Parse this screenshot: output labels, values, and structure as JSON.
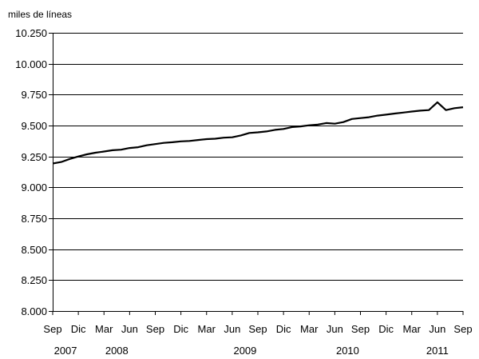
{
  "chart_data": {
    "type": "line",
    "ylabel": "miles de líneas",
    "ylim": [
      8000,
      10250
    ],
    "y_ticks": [
      8000,
      8250,
      8500,
      8750,
      9000,
      9250,
      9500,
      9750,
      10000,
      10250
    ],
    "y_tick_labels": [
      "8.000",
      "8.250",
      "8.500",
      "8.750",
      "9.000",
      "9.250",
      "9.500",
      "9.750",
      "10.000",
      "10.250"
    ],
    "categories": [
      "Sep 2007",
      "Oct 2007",
      "Nov 2007",
      "Dic 2007",
      "Ene 2008",
      "Feb 2008",
      "Mar 2008",
      "Abr 2008",
      "May 2008",
      "Jun 2008",
      "Jul 2008",
      "Ago 2008",
      "Sep 2008",
      "Oct 2008",
      "Nov 2008",
      "Dic 2008",
      "Ene 2009",
      "Feb 2009",
      "Mar 2009",
      "Abr 2009",
      "May 2009",
      "Jun 2009",
      "Jul 2009",
      "Ago 2009",
      "Sep 2009",
      "Oct 2009",
      "Nov 2009",
      "Dic 2009",
      "Ene 2010",
      "Feb 2010",
      "Mar 2010",
      "Abr 2010",
      "May 2010",
      "Jun 2010",
      "Jul 2010",
      "Ago 2010",
      "Sep 2010",
      "Oct 2010",
      "Nov 2010",
      "Dic 2010",
      "Ene 2011",
      "Feb 2011",
      "Mar 2011",
      "Abr 2011",
      "May 2011",
      "Jun 2011",
      "Jul 2011",
      "Ago 2011",
      "Sep 2011"
    ],
    "series": [
      {
        "values": [
          9193,
          9205,
          9230,
          9250,
          9267,
          9280,
          9290,
          9300,
          9305,
          9318,
          9325,
          9340,
          9350,
          9360,
          9365,
          9372,
          9375,
          9383,
          9390,
          9393,
          9402,
          9405,
          9420,
          9440,
          9445,
          9452,
          9465,
          9472,
          9488,
          9493,
          9502,
          9508,
          9520,
          9515,
          9528,
          9553,
          9560,
          9567,
          9580,
          9588,
          9597,
          9605,
          9613,
          9620,
          9625,
          9688,
          9625,
          9640,
          9648
        ]
      }
    ],
    "x_tick_labels": [
      "Sep",
      "Dic",
      "Mar",
      "Jun",
      "Sep",
      "Dic",
      "Mar",
      "Jun",
      "Sep",
      "Dic",
      "Mar",
      "Jun",
      "Sep",
      "Dic",
      "Mar",
      "Jun",
      "Sep"
    ],
    "year_labels": [
      {
        "label": "2007",
        "at_index": 1.5
      },
      {
        "label": "2008",
        "at_index": 7.5
      },
      {
        "label": "2009",
        "at_index": 22.5
      },
      {
        "label": "2010",
        "at_index": 34.5
      },
      {
        "label": "2011",
        "at_index": 45
      }
    ],
    "grid": true,
    "legend": "none",
    "line_color": "#000000"
  }
}
